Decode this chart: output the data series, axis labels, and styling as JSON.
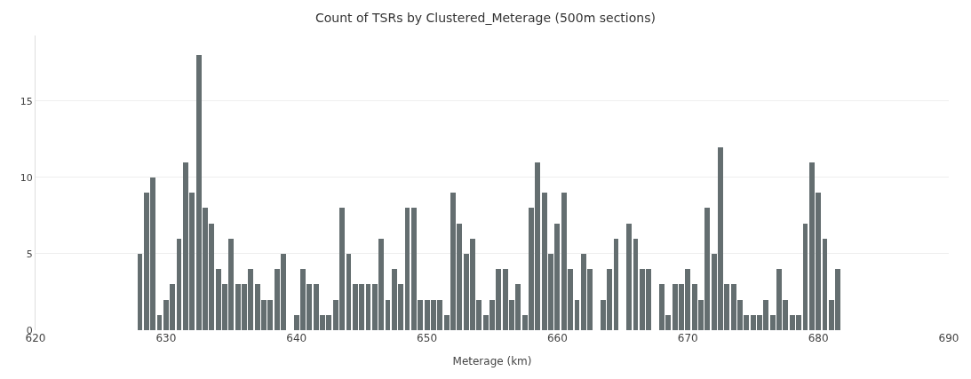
{
  "chart_data": {
    "type": "bar",
    "title": "Count of TSRs by Clustered_Meterage (500m sections)",
    "xlabel": "Meterage (km)",
    "x": [
      628,
      628.5,
      629,
      629.5,
      630,
      630.5,
      631,
      631.5,
      632,
      632.5,
      633,
      633.5,
      634,
      634.5,
      635,
      635.5,
      636,
      636.5,
      637,
      637.5,
      638,
      638.5,
      639,
      639.5,
      640,
      640.5,
      641,
      641.5,
      642,
      642.5,
      643,
      643.5,
      644,
      644.5,
      645,
      645.5,
      646,
      646.5,
      647,
      647.5,
      648,
      648.5,
      649,
      649.5,
      650,
      650.5,
      651,
      651.5,
      652,
      652.5,
      653,
      653.5,
      654,
      654.5,
      655,
      655.5,
      656,
      656.5,
      657,
      657.5,
      658,
      658.5,
      659,
      659.5,
      660,
      660.5,
      661,
      661.5,
      662,
      662.5,
      663,
      663.5,
      664,
      664.5,
      665,
      665.5,
      666,
      666.5,
      667,
      667.5,
      668,
      668.5,
      669,
      669.5,
      670,
      670.5,
      671,
      671.5,
      672,
      672.5,
      673,
      673.5,
      674,
      674.5,
      675,
      675.5,
      676,
      676.5,
      677,
      677.5,
      678,
      678.5,
      679,
      679.5,
      680,
      680.5,
      681,
      681.5
    ],
    "values": [
      5,
      9,
      10,
      1,
      2,
      3,
      6,
      11,
      9,
      18,
      8,
      7,
      4,
      3,
      6,
      3,
      3,
      4,
      3,
      2,
      2,
      4,
      5,
      null,
      1,
      4,
      3,
      3,
      1,
      1,
      2,
      8,
      5,
      3,
      3,
      3,
      3,
      6,
      2,
      4,
      3,
      8,
      8,
      2,
      2,
      2,
      2,
      1,
      9,
      7,
      5,
      6,
      2,
      1,
      2,
      4,
      4,
      2,
      3,
      1,
      8,
      11,
      9,
      5,
      7,
      9,
      4,
      2,
      5,
      4,
      null,
      2,
      4,
      6,
      null,
      7,
      6,
      4,
      4,
      null,
      3,
      1,
      3,
      3,
      4,
      3,
      2,
      8,
      5,
      12,
      3,
      3,
      2,
      1,
      1,
      1,
      2,
      1,
      4,
      2,
      1,
      1,
      7,
      11,
      9,
      6,
      2,
      4
    ],
    "color": "#646e70",
    "xlim": [
      620,
      690
    ],
    "xticks": [
      620,
      630,
      640,
      650,
      660,
      670,
      680,
      690
    ],
    "ylim": [
      0,
      19.3
    ],
    "yticks": [
      0,
      5,
      10,
      15
    ],
    "grid": "y"
  }
}
